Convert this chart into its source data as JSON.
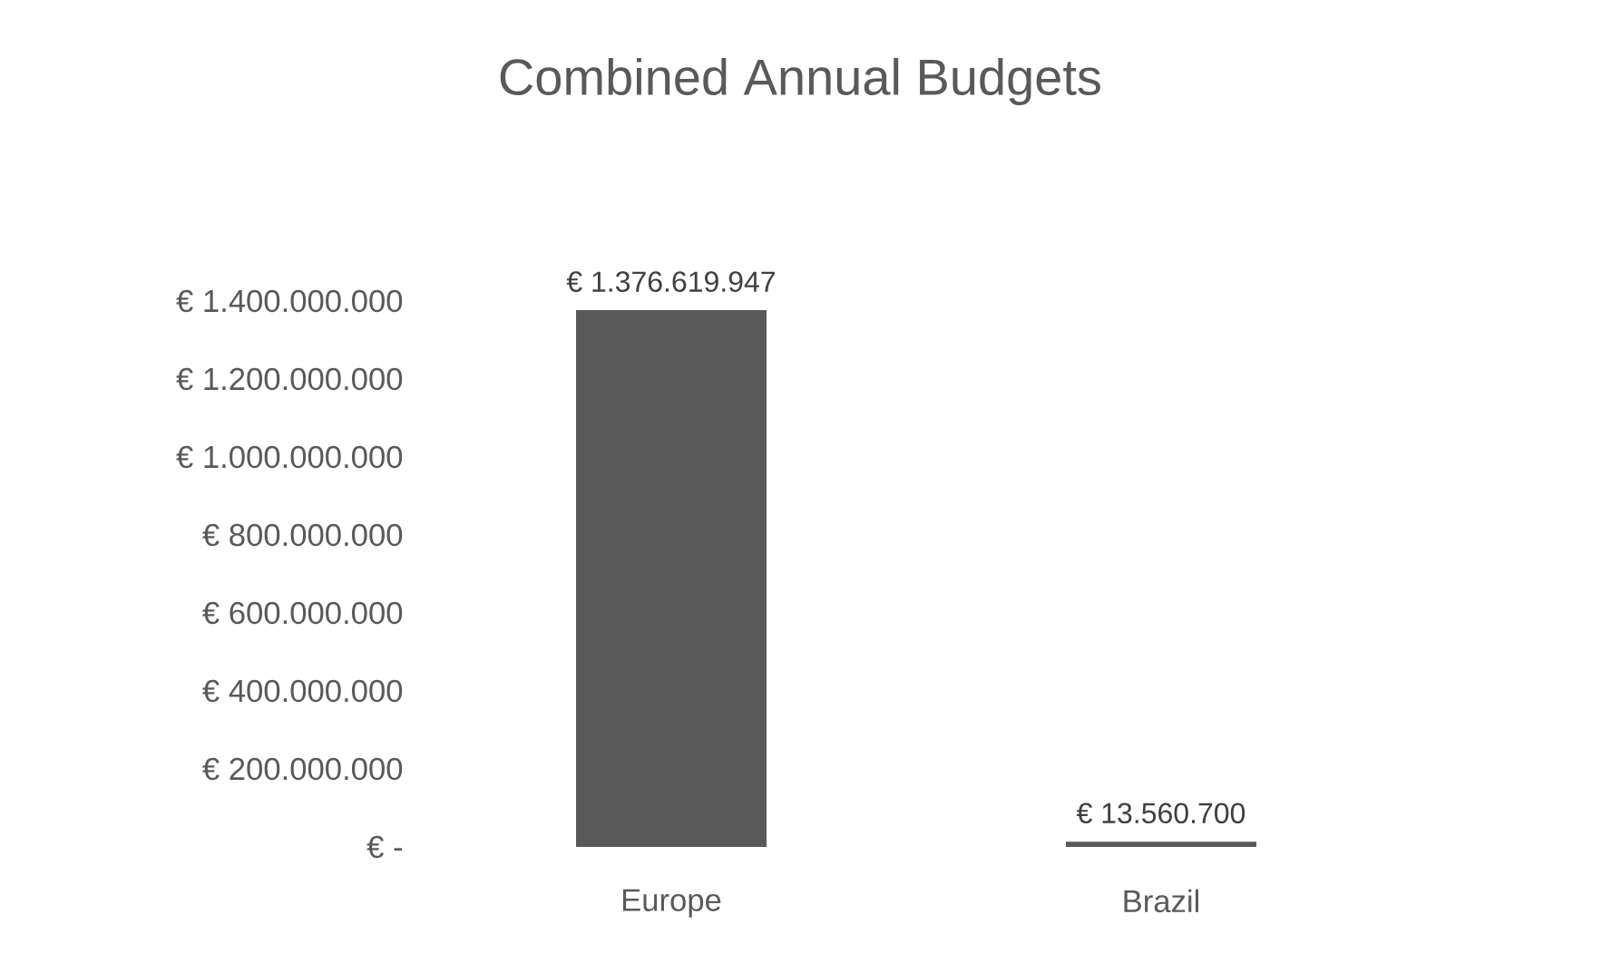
{
  "chart_data": {
    "type": "bar",
    "title": "Combined Annual Budgets",
    "categories": [
      "Europe",
      "Brazil"
    ],
    "values": [
      1376619947,
      13560700
    ],
    "value_labels": [
      "€ 1.376.619.947",
      "€ 13.560.700"
    ],
    "color": "#595959",
    "ylim": [
      0,
      1400000000
    ],
    "yticks": [
      {
        "value": 0,
        "label": "€ -"
      },
      {
        "value": 200000000,
        "label": "€ 200.000.000"
      },
      {
        "value": 400000000,
        "label": "€ 400.000.000"
      },
      {
        "value": 600000000,
        "label": "€ 600.000.000"
      },
      {
        "value": 800000000,
        "label": "€ 800.000.000"
      },
      {
        "value": 1000000000,
        "label": "€ 1.000.000.000"
      },
      {
        "value": 1200000000,
        "label": "€ 1.200.000.000"
      },
      {
        "value": 1400000000,
        "label": "€ 1.400.000.000"
      }
    ]
  }
}
